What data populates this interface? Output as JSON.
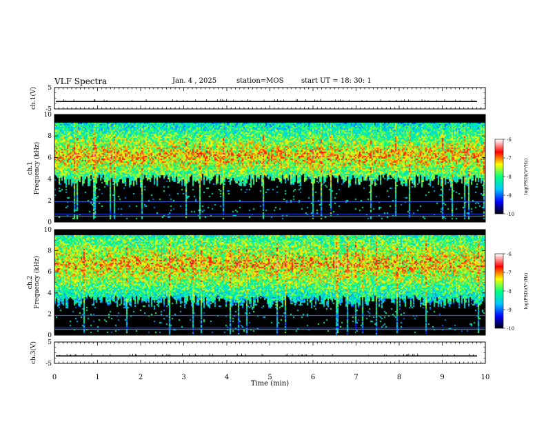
{
  "header": {
    "title": "VLF Spectra",
    "date": "Jan. 4 , 2025",
    "station": "station=MOS",
    "start": "start UT =  18: 30: 1"
  },
  "chart_data": {
    "type": "heatmap",
    "x_axis": {
      "label": "Time (min)",
      "range": [
        0,
        10
      ],
      "ticks": [
        "0",
        "1",
        "2",
        "3",
        "4",
        "5",
        "6",
        "7",
        "8",
        "9",
        "10"
      ]
    },
    "panels": [
      {
        "id": "ch1_waveform",
        "type": "line",
        "ylabel": "ch.1(V)",
        "yrange": [
          -5,
          5
        ],
        "yticks": [
          "5",
          "-5"
        ],
        "baseline_value": -1.5
      },
      {
        "id": "ch1_spectrogram",
        "type": "heatmap",
        "ylabel": "ch.1 Frequency (kHz)",
        "yrange": [
          0,
          10
        ],
        "yticks": [
          "0",
          "2",
          "4",
          "6",
          "8",
          "10"
        ],
        "band_kHz": [
          4.5,
          9.2
        ],
        "peak_kHz": 6.2,
        "cutoff_kHz": 9.3
      },
      {
        "id": "ch2_spectrogram",
        "type": "heatmap",
        "ylabel": "ch.2 Frequency (kHz)",
        "yrange": [
          0,
          10
        ],
        "yticks": [
          "0",
          "2",
          "4",
          "6",
          "8",
          "10"
        ],
        "band_kHz": [
          3.8,
          9.4
        ],
        "peak_kHz": 6.8,
        "cutoff_kHz": 9.5
      },
      {
        "id": "ch3_waveform",
        "type": "line",
        "ylabel": "ch.3(V)",
        "yrange": [
          -5,
          5
        ],
        "yticks": [
          "5",
          "-5"
        ],
        "baseline_value": -1.5
      }
    ],
    "colorbar": {
      "label": "log(PSD)(V²/Hz)",
      "range": [
        -10,
        -6
      ],
      "ticks": [
        "-6",
        "-7",
        "-8",
        "-9",
        "-10"
      ],
      "colors": [
        "#000000",
        "#0000ff",
        "#00c8ff",
        "#00ff80",
        "#ffff00",
        "#ff0000",
        "#ffffff"
      ]
    },
    "grid": false,
    "legend": "none"
  }
}
